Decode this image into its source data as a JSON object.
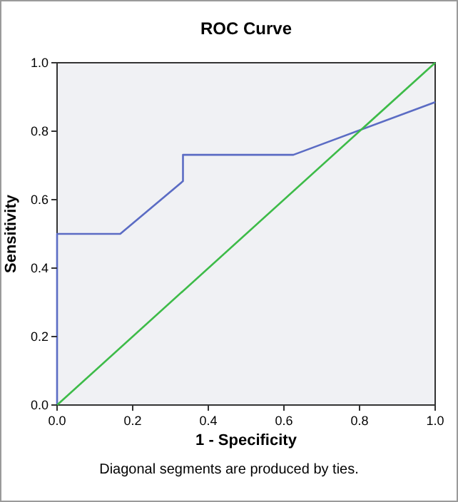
{
  "chart_data": {
    "type": "line",
    "title": "ROC Curve",
    "xlabel": "1 - Specificity",
    "ylabel": "Sensitivity",
    "xlim": [
      0,
      1
    ],
    "ylim": [
      0,
      1
    ],
    "xticks": [
      {
        "value": 0,
        "label": "0.0"
      },
      {
        "value": 0.2,
        "label": "0.2"
      },
      {
        "value": 0.4,
        "label": "0.4"
      },
      {
        "value": 0.6,
        "label": "0.6"
      },
      {
        "value": 0.8,
        "label": "0.8"
      },
      {
        "value": 1,
        "label": "1.0"
      }
    ],
    "yticks": [
      {
        "value": 0,
        "label": "0.0"
      },
      {
        "value": 0.2,
        "label": "0.2"
      },
      {
        "value": 0.4,
        "label": "0.4"
      },
      {
        "value": 0.6,
        "label": "0.6"
      },
      {
        "value": 0.8,
        "label": "0.8"
      },
      {
        "value": 1,
        "label": "1.0"
      }
    ],
    "series": [
      {
        "color": "#5b6cc4",
        "x": [
          0,
          0,
          0.167,
          0.333,
          0.333,
          0.625,
          1
        ],
        "values": [
          0,
          0.5,
          0.5,
          0.654,
          0.731,
          0.731,
          0.885
        ]
      },
      {
        "color": "#3dbb48",
        "x": [
          0,
          1
        ],
        "values": [
          0,
          1
        ]
      }
    ],
    "grid": false,
    "marker": "none",
    "line_style": "solid",
    "annotations": [
      "Diagonal segments are produced by ties."
    ]
  }
}
